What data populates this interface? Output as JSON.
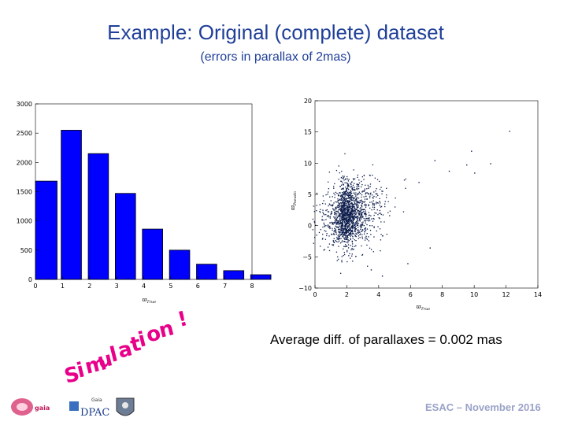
{
  "slide": {
    "title": "Example: Original (complete) dataset",
    "subtitle": "(errors in parallax of 2mas)",
    "simulation_label": "Simulation !",
    "average_text": "Average diff. of parallaxes = 0.002 mas",
    "footer": "ESAC – November 2016"
  },
  "logos": {
    "gaia_small": "gaia",
    "dpac_top": "Gaia",
    "dpac": "DPAC"
  },
  "chart_data": [
    {
      "type": "bar",
      "bin_edges": [
        0,
        1,
        2,
        3,
        4,
        5,
        6,
        7,
        8
      ],
      "values": [
        1680,
        2550,
        2150,
        1470,
        860,
        500,
        260,
        150,
        80
      ],
      "bin_width": 0.7,
      "xlabel": "ϖTrue",
      "xticks": [
        0,
        1,
        2,
        3,
        4,
        5,
        6,
        7,
        8
      ],
      "yticks": [
        0,
        500,
        1000,
        1500,
        2000,
        2500,
        3000
      ],
      "xlim": [
        0,
        8
      ],
      "ylim": [
        0,
        3000
      ],
      "color": "#0000ff"
    },
    {
      "type": "scatter",
      "xlabel": "ϖTrue",
      "ylabel": "ϖPseudo",
      "xticks": [
        0,
        2,
        4,
        6,
        8,
        10,
        12,
        14
      ],
      "yticks": [
        -10,
        -5,
        0,
        5,
        10,
        15,
        20
      ],
      "xlim": [
        0,
        14
      ],
      "ylim": [
        -10,
        20
      ],
      "color": "#0a1a4a",
      "cluster": {
        "x_mean": 1.6,
        "x_sd": 1.2,
        "y_mean": 1.5,
        "y_sd": 2.6,
        "slope": 0.55,
        "n": 1600
      },
      "points": [
        {
          "x": 12.2,
          "y": 15.2
        },
        {
          "x": 9.8,
          "y": 12.0
        },
        {
          "x": 11.0,
          "y": 10.0
        },
        {
          "x": 10.0,
          "y": 8.5
        },
        {
          "x": 9.5,
          "y": 9.8
        },
        {
          "x": 8.4,
          "y": 8.8
        },
        {
          "x": 7.5,
          "y": 10.5
        },
        {
          "x": 6.5,
          "y": 7.0
        },
        {
          "x": 5.8,
          "y": -6.0
        },
        {
          "x": 7.2,
          "y": -3.5
        },
        {
          "x": 3.5,
          "y": -7.0
        },
        {
          "x": 4.2,
          "y": -8.0
        }
      ]
    }
  ]
}
